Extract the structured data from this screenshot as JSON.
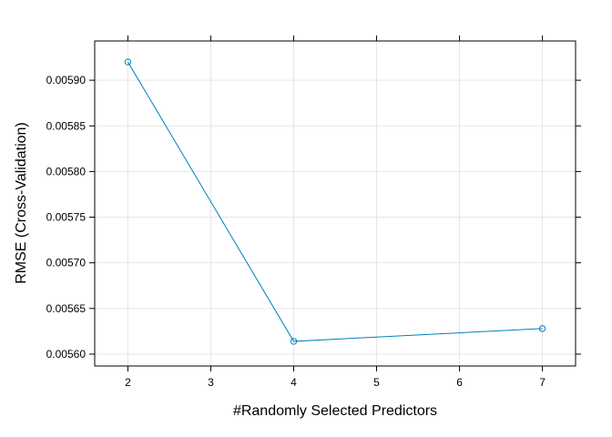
{
  "chart_data": {
    "type": "line",
    "xlabel": "#Randomly Selected Predictors",
    "ylabel": "RMSE (Cross-Validation)",
    "x": [
      2,
      4,
      7
    ],
    "series": [
      {
        "values": [
          0.00592,
          0.005614,
          0.005628
        ],
        "color": "#0080c0"
      }
    ],
    "xlim": [
      1.6,
      7.4
    ],
    "ylim": [
      0.005587,
      0.005943
    ],
    "xticks": [
      2,
      3,
      4,
      5,
      6,
      7
    ],
    "xtick_labels": [
      "2",
      "3",
      "4",
      "5",
      "6",
      "7"
    ],
    "yticks": [
      0.0056,
      0.00565,
      0.0057,
      0.00575,
      0.0058,
      0.00585,
      0.0059
    ],
    "ytick_labels": [
      "0.00560",
      "0.00565",
      "0.00570",
      "0.00575",
      "0.00580",
      "0.00585",
      "0.00590"
    ],
    "grid": true
  }
}
